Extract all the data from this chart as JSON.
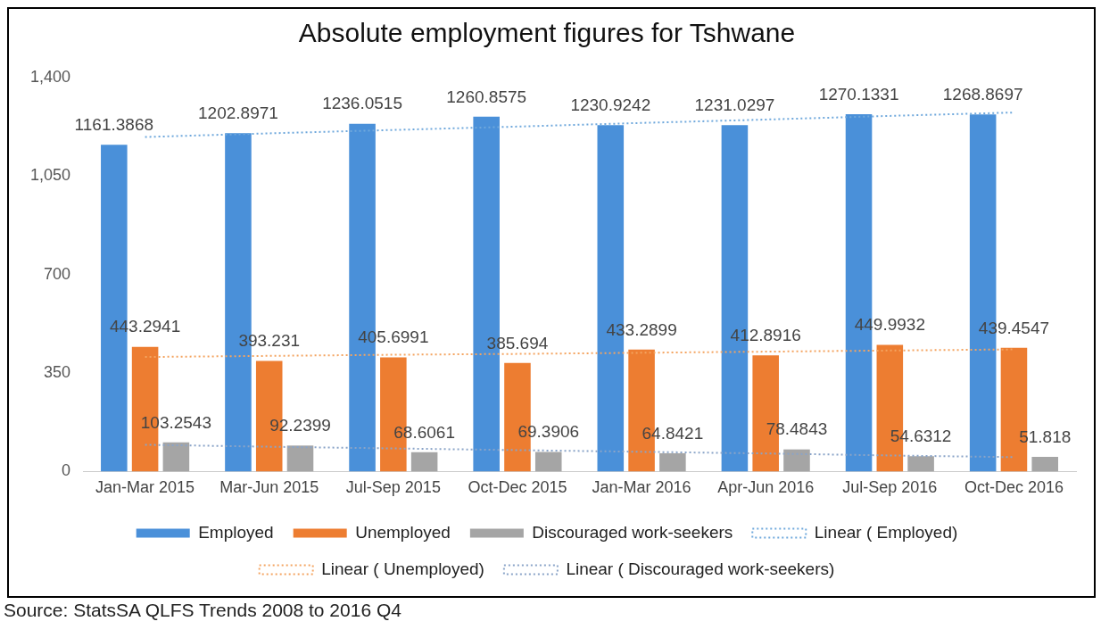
{
  "chart_data": {
    "type": "bar",
    "title": "Absolute employment figures for Tshwane",
    "categories": [
      "Jan-Mar 2015",
      "Mar-Jun 2015",
      "Jul-Sep 2015",
      "Oct-Dec 2015",
      "Jan-Mar 2016",
      "Apr-Jun 2016",
      "Jul-Sep 2016",
      "Oct-Dec 2016"
    ],
    "series": [
      {
        "name": "Employed",
        "color": "#4a90d9",
        "values": [
          1161.3868,
          1202.8971,
          1236.0515,
          1260.8575,
          1230.9242,
          1231.0297,
          1270.1331,
          1268.8697
        ],
        "value_labels": [
          "1161.3868",
          "1202.8971",
          "1236.0515",
          "1260.8575",
          "1230.9242",
          "1231.0297",
          "1270.1331",
          "1268.8697"
        ]
      },
      {
        "name": "Unemployed",
        "color": "#ed7d31",
        "values": [
          443.2941,
          393.231,
          405.6991,
          385.694,
          433.2899,
          412.8916,
          449.9932,
          439.4547
        ],
        "value_labels": [
          "443.2941",
          "393.231",
          "405.6991",
          "385.694",
          "433.2899",
          "412.8916",
          "449.9932",
          "439.4547"
        ]
      },
      {
        "name": "Discouraged work-seekers",
        "color": "#a5a5a5",
        "values": [
          103.2543,
          92.2399,
          68.6061,
          69.3906,
          64.8421,
          78.4843,
          54.6312,
          51.818
        ],
        "value_labels": [
          "103.2543",
          "92.2399",
          "68.6061",
          "69.3906",
          "64.8421",
          "78.4843",
          "54.6312",
          "51.818"
        ]
      },
      {
        "name": "Linear ( Employed)",
        "type": "line",
        "line_style": "dotted",
        "marker": "none",
        "color": "#6fa8dc",
        "values": [
          1189,
          1202,
          1214,
          1226,
          1239,
          1251,
          1264,
          1276
        ]
      },
      {
        "name": "Linear ( Unemployed)",
        "type": "line",
        "line_style": "dotted",
        "marker": "none",
        "color": "#f4a460",
        "values": [
          407,
          411,
          415,
          418,
          422,
          426,
          430,
          434
        ]
      },
      {
        "name": "Linear ( Discouraged work-seekers)",
        "type": "line",
        "line_style": "dotted",
        "marker": "none",
        "color": "#8aa4c8",
        "values": [
          95,
          88,
          82,
          76,
          70,
          64,
          57,
          51
        ]
      }
    ],
    "ylim": [
      0,
      1400
    ],
    "yticks": [
      0,
      350,
      700,
      {
        "value": 1050,
        "label": "1,050"
      },
      {
        "value": 1400,
        "label": "1,400"
      }
    ],
    "grid": false,
    "legend": "bottom",
    "annotations": [
      "Source: StatsSA QLFS Trends 2008 to 2016 Q4"
    ]
  }
}
